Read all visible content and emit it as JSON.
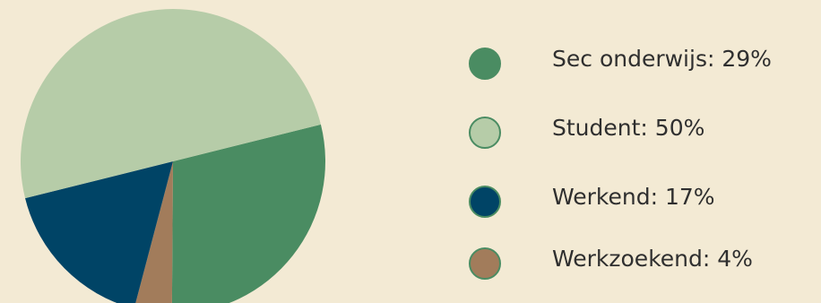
{
  "chart_data": {
    "type": "pie",
    "title": "",
    "start_angle_deg": -14,
    "slices": [
      {
        "label": "Sec onderwijs",
        "value": 29,
        "display": "Sec onderwijs: 29%",
        "color": "#4a8c62"
      },
      {
        "label": "Werkzoekend",
        "value": 4,
        "display": "Werkzoekend: 4%",
        "color": "#a27c5b"
      },
      {
        "label": "Werkend",
        "value": 17,
        "display": "Werkend: 17%",
        "color": "#004466"
      },
      {
        "label": "Student",
        "value": 50,
        "display": "Student: 50%",
        "color": "#b6cca8"
      }
    ],
    "legend": {
      "placement": "right",
      "items": [
        {
          "text": "Sec onderwijs: 29%",
          "color": "#4a8c62"
        },
        {
          "text": "Student: 50%",
          "color": "#b6cca8"
        },
        {
          "text": "Werkend: 17%",
          "color": "#004466"
        },
        {
          "text": "Werkzoekend: 4%",
          "color": "#a27c5b"
        }
      ]
    }
  }
}
